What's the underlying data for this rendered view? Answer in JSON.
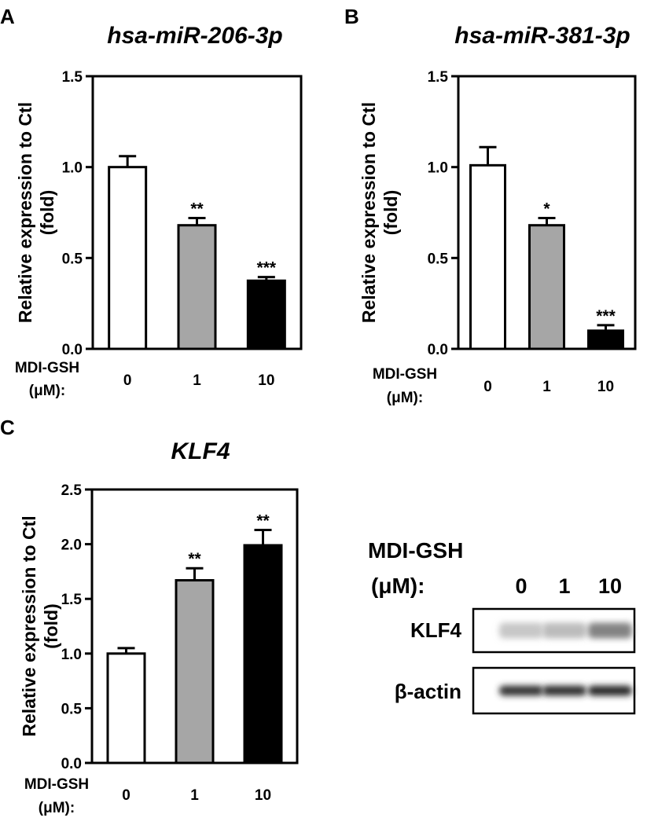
{
  "panels": [
    {
      "letter": "A",
      "chart_data": {
        "type": "bar",
        "title": "hsa-miR-206-3p",
        "ylabel": "Relative expression to Ctl\n(fold)",
        "xlabel": "",
        "x_condition_label": [
          "MDI-GSH",
          "(μM):"
        ],
        "categories": [
          "0",
          "1",
          "10"
        ],
        "values": [
          1.0,
          0.68,
          0.375
        ],
        "errors": [
          0.06,
          0.04,
          0.02
        ],
        "significance": [
          "",
          "**",
          "***"
        ],
        "bar_colors": [
          "#ffffff",
          "#a6a6a6",
          "#000000"
        ],
        "ylim": [
          0,
          1.5
        ],
        "yticks": [
          "0.0",
          "0.5",
          "1.0",
          "1.5"
        ],
        "grid": false,
        "legend": "none"
      }
    },
    {
      "letter": "B",
      "chart_data": {
        "type": "bar",
        "title": "hsa-miR-381-3p",
        "ylabel": "Relative expression to Ctl\n(fold)",
        "xlabel": "",
        "x_condition_label": [
          "MDI-GSH",
          "(μM):"
        ],
        "categories": [
          "0",
          "1",
          "10"
        ],
        "values": [
          1.01,
          0.68,
          0.1
        ],
        "errors": [
          0.1,
          0.04,
          0.03
        ],
        "significance": [
          "",
          "*",
          "***"
        ],
        "bar_colors": [
          "#ffffff",
          "#a6a6a6",
          "#000000"
        ],
        "ylim": [
          0,
          1.5
        ],
        "yticks": [
          "0.0",
          "0.5",
          "1.0",
          "1.5"
        ],
        "grid": false,
        "legend": "none"
      }
    },
    {
      "letter": "C",
      "chart_data": {
        "type": "bar",
        "title": "KLF4",
        "ylabel": "Relative expression to Ctl\n(fold)",
        "xlabel": "",
        "x_condition_label": [
          "MDI-GSH",
          "(μM):"
        ],
        "categories": [
          "0",
          "1",
          "10"
        ],
        "values": [
          1.0,
          1.67,
          1.99
        ],
        "errors": [
          0.05,
          0.11,
          0.14
        ],
        "significance": [
          "",
          "**",
          "**"
        ],
        "bar_colors": [
          "#ffffff",
          "#a6a6a6",
          "#000000"
        ],
        "ylim": [
          0,
          2.5
        ],
        "yticks": [
          "0.0",
          "0.5",
          "1.0",
          "1.5",
          "2.0",
          "2.5"
        ],
        "grid": false,
        "legend": "none"
      }
    }
  ],
  "blot": {
    "header_line1": "MDI-GSH",
    "header_line2": "(μM):",
    "lanes": [
      "0",
      "1",
      "10"
    ],
    "rows": [
      {
        "label": "KLF4",
        "band_intensity": [
          0.25,
          0.3,
          0.55
        ]
      },
      {
        "label": "β-actin",
        "band_intensity": [
          0.9,
          0.92,
          0.95
        ]
      }
    ]
  }
}
